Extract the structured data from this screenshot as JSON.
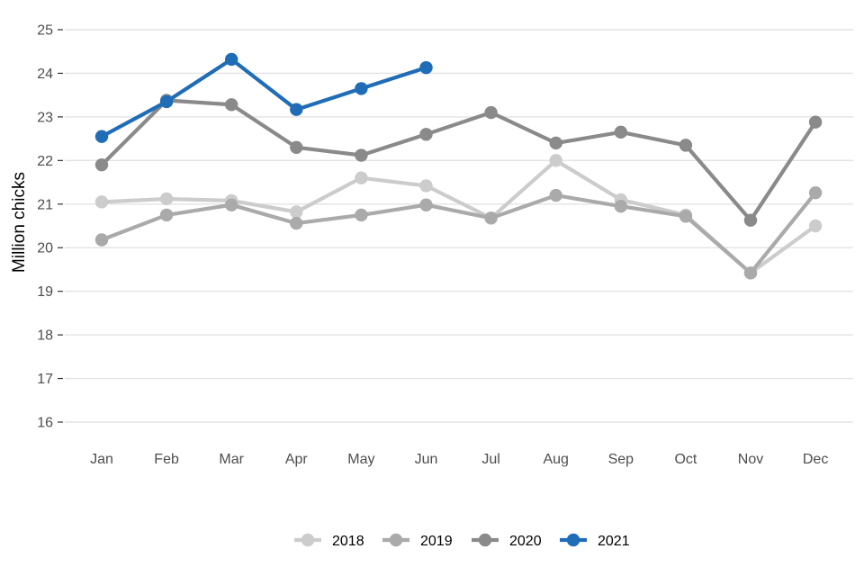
{
  "chart_data": {
    "type": "line",
    "title": "",
    "xlabel": "",
    "ylabel": "Million chicks",
    "ylim": [
      16,
      25
    ],
    "yticks": [
      16,
      17,
      18,
      19,
      20,
      21,
      22,
      23,
      24,
      25
    ],
    "categories": [
      "Jan",
      "Feb",
      "Mar",
      "Apr",
      "May",
      "Jun",
      "Jul",
      "Aug",
      "Sep",
      "Oct",
      "Nov",
      "Dec"
    ],
    "grid": true,
    "legend_position": "bottom",
    "series": [
      {
        "name": "2018",
        "color": "#cccccc",
        "values": [
          21.05,
          21.12,
          21.08,
          20.82,
          21.6,
          21.42,
          20.68,
          22.0,
          21.1,
          20.75,
          19.42,
          20.5
        ]
      },
      {
        "name": "2019",
        "color": "#aaaaaa",
        "values": [
          20.18,
          20.75,
          20.98,
          20.56,
          20.75,
          20.98,
          20.68,
          21.2,
          20.95,
          20.72,
          19.42,
          21.26
        ]
      },
      {
        "name": "2020",
        "color": "#8a8a8a",
        "values": [
          21.9,
          23.38,
          23.28,
          22.3,
          22.12,
          22.6,
          23.1,
          22.4,
          22.65,
          22.35,
          20.63,
          22.88
        ]
      },
      {
        "name": "2021",
        "color": "#1f6cb7",
        "values": [
          22.55,
          23.35,
          24.32,
          23.17,
          23.65,
          24.13,
          null,
          null,
          null,
          null,
          null,
          null
        ]
      }
    ]
  }
}
